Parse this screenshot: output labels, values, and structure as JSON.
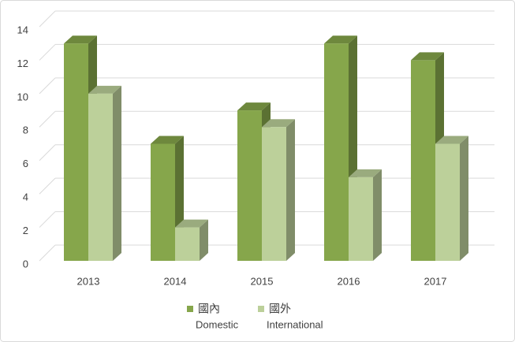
{
  "chart_data": {
    "type": "bar3d",
    "categories": [
      "2013",
      "2014",
      "2015",
      "2016",
      "2017"
    ],
    "series": [
      {
        "name": "國內",
        "subname": "Domestic",
        "color": "#86a64b",
        "values": [
          13,
          7,
          9,
          13,
          12
        ]
      },
      {
        "name": "國外",
        "subname": "International",
        "color": "#bcd09a",
        "values": [
          10,
          2,
          8,
          5,
          7
        ]
      }
    ],
    "ylim": [
      0,
      14
    ],
    "yticks": [
      0,
      2,
      4,
      6,
      8,
      10,
      12,
      14
    ],
    "grid": true,
    "legend": "bottom"
  }
}
